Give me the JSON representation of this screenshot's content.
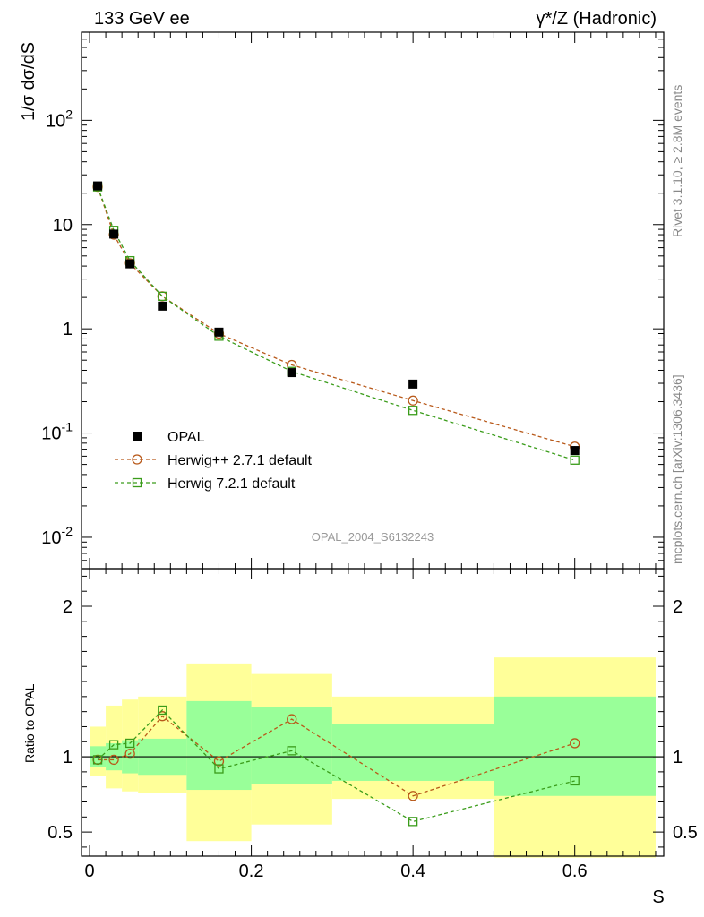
{
  "header": {
    "left_title": "133 GeV ee",
    "right_title": "γ*/Z (Hadronic)"
  },
  "side_labels": {
    "rivet": "Rivet 3.1.10, ≥ 2.8M events",
    "mcplots": "mcplots.cern.ch [arXiv:1306.3436]"
  },
  "watermark": "OPAL_2004_S6132243",
  "colors": {
    "data": "#000000",
    "herwigpp": "#b8591a",
    "herwig7": "#3a9c1a",
    "band_inner": "#99ff99",
    "band_outer": "#ffff99"
  },
  "chart_data": [
    {
      "type": "scatter",
      "panel": "main",
      "ylabel": "1/σ dσ/dS",
      "yscale": "log",
      "ylim": [
        0.005,
        700
      ],
      "xlim": [
        -0.01,
        0.71
      ],
      "y_ticks": [
        "10^-2",
        "10^-1",
        "1",
        "10",
        "10^2"
      ],
      "legend_position": "lower-left",
      "x": [
        0.01,
        0.03,
        0.05,
        0.09,
        0.16,
        0.25,
        0.4,
        0.6
      ],
      "series": [
        {
          "name": "OPAL",
          "marker": "filled-square",
          "values": [
            23.5,
            8.1,
            4.2,
            1.65,
            0.93,
            0.38,
            0.295,
            0.068
          ]
        },
        {
          "name": "Herwig++ 2.7.1 default",
          "marker": "open-circle",
          "line": "dashed",
          "values": [
            23.0,
            8.0,
            4.25,
            2.05,
            0.9,
            0.45,
            0.205,
            0.074
          ]
        },
        {
          "name": "Herwig 7.2.1 default",
          "marker": "open-square",
          "line": "dashed",
          "values": [
            23.0,
            8.8,
            4.5,
            2.05,
            0.85,
            0.39,
            0.165,
            0.055
          ]
        }
      ]
    },
    {
      "type": "line",
      "panel": "ratio",
      "xlabel": "S",
      "ylabel": "Ratio to OPAL",
      "ylim": [
        0.34,
        2.25
      ],
      "y_ticks": [
        "0.5",
        "1",
        "2"
      ],
      "x_ticks": [
        "0",
        "0.2",
        "0.4",
        "0.6"
      ],
      "xlim": [
        -0.01,
        0.71
      ],
      "reference_line": 1.0,
      "uncertainty_bins": [
        {
          "xmin": 0.0,
          "xmax": 0.02,
          "inner": [
            0.93,
            1.07
          ],
          "outer": [
            0.87,
            1.2
          ]
        },
        {
          "xmin": 0.02,
          "xmax": 0.04,
          "inner": [
            0.91,
            1.09
          ],
          "outer": [
            0.79,
            1.34
          ]
        },
        {
          "xmin": 0.04,
          "xmax": 0.06,
          "inner": [
            0.89,
            1.11
          ],
          "outer": [
            0.77,
            1.38
          ]
        },
        {
          "xmin": 0.06,
          "xmax": 0.12,
          "inner": [
            0.88,
            1.12
          ],
          "outer": [
            0.76,
            1.4
          ]
        },
        {
          "xmin": 0.12,
          "xmax": 0.2,
          "inner": [
            0.78,
            1.37
          ],
          "outer": [
            0.44,
            1.62
          ]
        },
        {
          "xmin": 0.2,
          "xmax": 0.3,
          "inner": [
            0.82,
            1.33
          ],
          "outer": [
            0.55,
            1.55
          ]
        },
        {
          "xmin": 0.3,
          "xmax": 0.5,
          "inner": [
            0.84,
            1.22
          ],
          "outer": [
            0.72,
            1.4
          ]
        },
        {
          "xmin": 0.5,
          "xmax": 0.7,
          "inner": [
            0.74,
            1.4
          ],
          "outer": [
            0.33,
            1.66
          ]
        }
      ],
      "x": [
        0.01,
        0.03,
        0.05,
        0.09,
        0.16,
        0.25,
        0.4,
        0.6
      ],
      "series": [
        {
          "name": "Herwig++ 2.7.1 default",
          "marker": "open-circle",
          "values": [
            0.98,
            0.98,
            1.02,
            1.27,
            0.97,
            1.25,
            0.74,
            1.09
          ]
        },
        {
          "name": "Herwig 7.2.1 default",
          "marker": "open-square",
          "values": [
            0.98,
            1.08,
            1.09,
            1.31,
            0.92,
            1.04,
            0.57,
            0.84
          ]
        }
      ]
    }
  ]
}
